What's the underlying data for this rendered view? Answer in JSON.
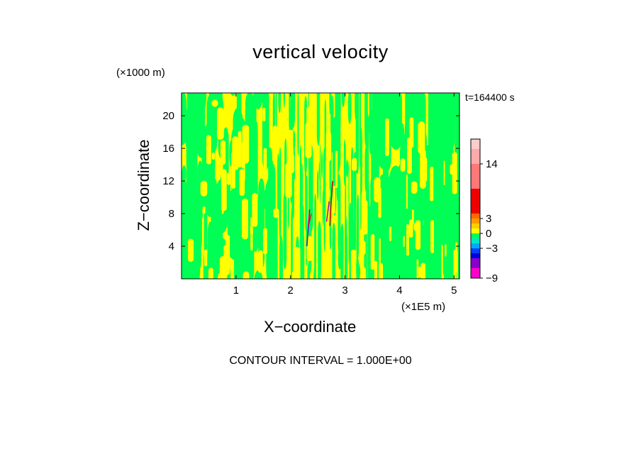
{
  "chart_data": {
    "type": "heatmap",
    "title": "vertical velocity",
    "xlabel": "X−coordinate",
    "ylabel": "Z−coordinate",
    "x_units": "(×1E5 m)",
    "z_units": "(×1000 m)",
    "time_label": "t=164400 s",
    "contour_interval": "CONTOUR INTERVAL = 1.000E+00",
    "xlim": [
      0,
      5.1
    ],
    "ylim": [
      0,
      22.8
    ],
    "x_ticks": [
      1,
      2,
      3,
      4,
      5
    ],
    "x_tick_labels": [
      "1",
      "2",
      "3",
      "4",
      "5"
    ],
    "y_ticks": [
      4,
      8,
      12,
      16,
      20
    ],
    "y_tick_labels": [
      "4",
      "8",
      "12",
      "16",
      "20"
    ],
    "colorbar": {
      "levels": [
        -9,
        -7,
        -5,
        -4,
        -3,
        -2,
        -1,
        0,
        1,
        2,
        3,
        4,
        9,
        14,
        17,
        19
      ],
      "colors": [
        "#ff00cc",
        "#8800cc",
        "#0000dd",
        "#0044ff",
        "#00a8ff",
        "#00e8c8",
        "#00ff55",
        "#ffff00",
        "#ffcc00",
        "#ff9900",
        "#ff6a00",
        "#ee0000",
        "#ff7777",
        "#ffaaaa",
        "#ffcccc"
      ],
      "tick_values": [
        -9,
        -3,
        0,
        3,
        14
      ],
      "tick_labels": [
        "−9",
        "−3",
        "0",
        "3",
        "14"
      ]
    },
    "dominant_fields": [
      "yellow (0 to 1)",
      "green (−1 to 0)"
    ],
    "colors": {
      "yellow": "#ffff00",
      "green": "#00ff55"
    }
  }
}
